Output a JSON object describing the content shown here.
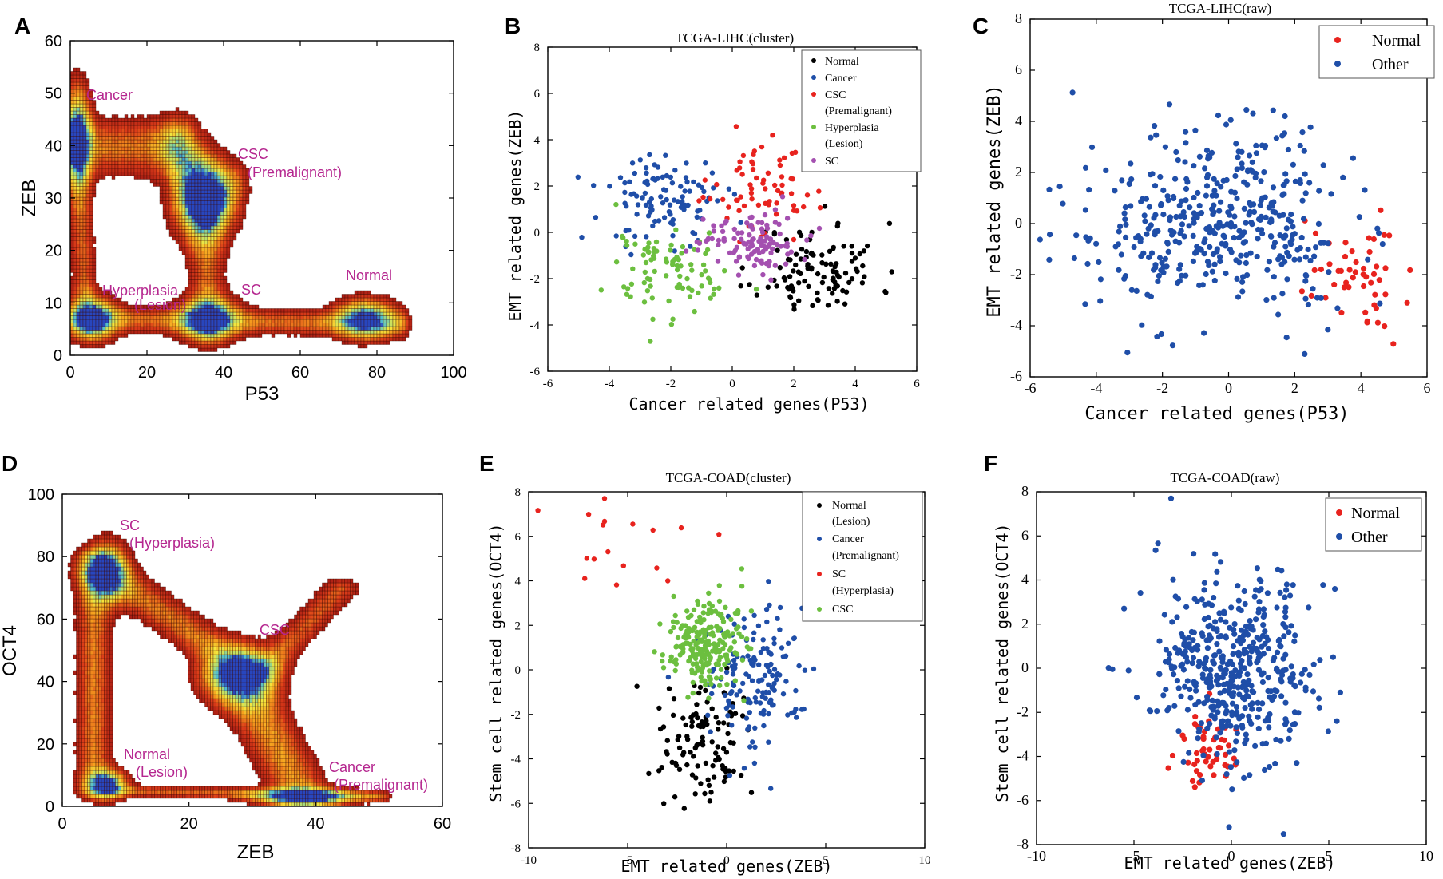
{
  "figure": {
    "panels": [
      "A",
      "B",
      "C",
      "D",
      "E",
      "F"
    ]
  },
  "colors": {
    "normal": "#000000",
    "cancer": "#1f4ea8",
    "csc": "#e8231e",
    "hyper": "#6cbf3f",
    "sc": "#a450b0",
    "annot": "#b5268f"
  },
  "chart_data": [
    {
      "id": "A",
      "type": "heatmap",
      "title": "",
      "xlabel": "P53",
      "ylabel": "ZEB",
      "xlim": [
        0,
        100
      ],
      "ylim": [
        0,
        60
      ],
      "xticks": [
        0,
        20,
        40,
        60,
        80,
        100
      ],
      "yticks": [
        0,
        10,
        20,
        30,
        40,
        50,
        60
      ],
      "annotations": [
        "Cancer",
        "CSC",
        "(Premalignant)",
        "Hyperplasia",
        "(Lesion)",
        "SC",
        "Normal"
      ],
      "peaks": [
        {
          "name": "Cancer",
          "x": 2,
          "y": 42
        },
        {
          "name": "CSC",
          "x": 35,
          "y": 30
        },
        {
          "name": "Hyperplasia",
          "x": 6,
          "y": 7
        },
        {
          "name": "SC",
          "x": 36,
          "y": 7
        },
        {
          "name": "Normal",
          "x": 77,
          "y": 7
        }
      ]
    },
    {
      "id": "B",
      "type": "scatter",
      "title": "TCGA-LIHC(cluster)",
      "xlabel": "Cancer related genes(P53)",
      "ylabel": "EMT related genes(ZEB)",
      "xlim": [
        -6,
        6
      ],
      "ylim": [
        -6,
        8
      ],
      "xticks": [
        -6,
        -4,
        -2,
        0,
        2,
        4,
        6
      ],
      "yticks": [
        -6,
        -4,
        -2,
        0,
        2,
        4,
        6,
        8
      ],
      "legend": [
        "Normal",
        "Cancer",
        "CSC",
        "(Premalignant)",
        "Hyperplasia",
        "(Lesion)",
        "SC"
      ],
      "series": [
        {
          "name": "Normal",
          "cx": 2.8,
          "cy": -1.6,
          "sx": 1.0,
          "sy": 1.0,
          "n": 110
        },
        {
          "name": "Cancer",
          "cx": -2.2,
          "cy": 1.5,
          "sx": 1.0,
          "sy": 1.0,
          "n": 110
        },
        {
          "name": "CSC (Premalignant)",
          "cx": 0.9,
          "cy": 2.0,
          "sx": 0.9,
          "sy": 1.0,
          "n": 70
        },
        {
          "name": "Hyperplasia (Lesion)",
          "cx": -2.0,
          "cy": -1.7,
          "sx": 1.0,
          "sy": 1.0,
          "n": 90
        },
        {
          "name": "SC",
          "cx": 0.6,
          "cy": -0.3,
          "sx": 0.8,
          "sy": 0.7,
          "n": 110
        }
      ]
    },
    {
      "id": "C",
      "type": "scatter",
      "title": "TCGA-LIHC(raw)",
      "xlabel": "Cancer related genes(P53)",
      "ylabel": "EMT related genes(ZEB)",
      "xlim": [
        -6,
        6
      ],
      "ylim": [
        -6,
        8
      ],
      "xticks": [
        -6,
        -4,
        -2,
        0,
        2,
        4,
        6
      ],
      "yticks": [
        -6,
        -4,
        -2,
        0,
        2,
        4,
        6,
        8
      ],
      "legend": [
        "Normal",
        "Other"
      ],
      "series": [
        {
          "name": "Normal",
          "cx": 3.7,
          "cy": -2.0,
          "sx": 0.8,
          "sy": 1.0,
          "n": 50
        },
        {
          "name": "Other",
          "cx": -0.2,
          "cy": 0.0,
          "sx": 1.9,
          "sy": 1.8,
          "n": 420
        }
      ]
    },
    {
      "id": "D",
      "type": "heatmap",
      "title": "",
      "xlabel": "ZEB",
      "ylabel": "OCT4",
      "xlim": [
        0,
        60
      ],
      "ylim": [
        0,
        100
      ],
      "xticks": [
        0,
        20,
        40,
        60
      ],
      "yticks": [
        0,
        20,
        40,
        60,
        80,
        100
      ],
      "annotations": [
        "SC",
        "(Hyperplasia)",
        "CSC",
        "Normal",
        "(Lesion)",
        "Cancer",
        "(Premalignant)"
      ],
      "peaks": [
        {
          "name": "SC",
          "x": 7,
          "y": 75
        },
        {
          "name": "CSC",
          "x": 28,
          "y": 42
        },
        {
          "name": "Normal",
          "x": 7,
          "y": 7
        },
        {
          "name": "Cancer",
          "x": 38,
          "y": 3
        }
      ]
    },
    {
      "id": "E",
      "type": "scatter",
      "title": "TCGA-COAD(cluster)",
      "xlabel": "EMT related genes(ZEB)",
      "ylabel": "Stem cell related genes(OCT4)",
      "xlim": [
        -10,
        10
      ],
      "ylim": [
        -8,
        8
      ],
      "xticks": [
        -10,
        -5,
        0,
        5,
        10
      ],
      "yticks": [
        -8,
        -6,
        -4,
        -2,
        0,
        2,
        4,
        6,
        8
      ],
      "legend": [
        "Normal",
        "(Lesion)",
        "Cancer",
        "(Premalignant)",
        "SC",
        "(Hyperplasia)",
        "CSC"
      ],
      "series": [
        {
          "name": "Normal (Lesion)",
          "cx": -1.3,
          "cy": -3.3,
          "sx": 1.1,
          "sy": 1.3,
          "n": 110
        },
        {
          "name": "Cancer (Premalignant)",
          "cx": 1.7,
          "cy": -0.4,
          "sx": 1.3,
          "sy": 1.6,
          "n": 150
        },
        {
          "name": "SC (Hyperplasia)",
          "cx": -5.8,
          "cy": 5.5,
          "sx": 1.5,
          "sy": 1.4,
          "n": 17
        },
        {
          "name": "CSC",
          "cx": -1.1,
          "cy": 1.2,
          "sx": 1.0,
          "sy": 1.0,
          "n": 220
        }
      ]
    },
    {
      "id": "F",
      "type": "scatter",
      "title": "TCGA-COAD(raw)",
      "xlabel": "EMT related genes(ZEB)",
      "ylabel": "Stem cell related genes(OCT4)",
      "xlim": [
        -10,
        10
      ],
      "ylim": [
        -8,
        8
      ],
      "xticks": [
        -10,
        -5,
        0,
        5,
        10
      ],
      "yticks": [
        -8,
        -6,
        -4,
        -2,
        0,
        2,
        4,
        6,
        8
      ],
      "legend": [
        "Normal",
        "Other"
      ],
      "series": [
        {
          "name": "Normal",
          "cx": -1.2,
          "cy": -3.8,
          "sx": 0.8,
          "sy": 1.1,
          "n": 50
        },
        {
          "name": "Other",
          "cx": 0.0,
          "cy": 0.0,
          "sx": 2.1,
          "sy": 2.2,
          "n": 460
        }
      ]
    }
  ]
}
